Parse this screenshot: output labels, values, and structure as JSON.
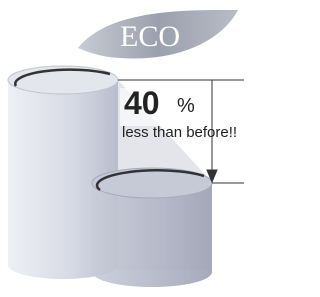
{
  "logo": {
    "label": "ECO"
  },
  "callout": {
    "value": 40,
    "unit": "%",
    "text": "less than before!!"
  }
}
